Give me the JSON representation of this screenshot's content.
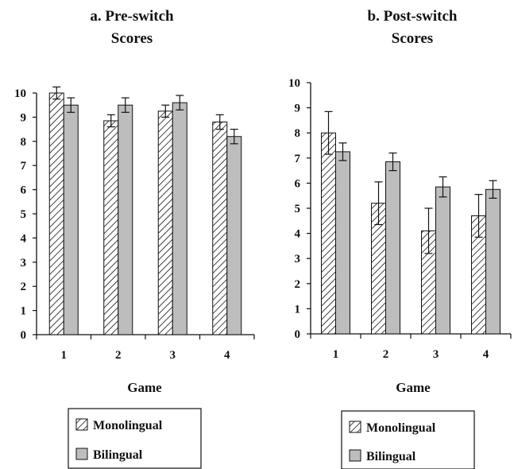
{
  "chart_data": [
    {
      "type": "bar",
      "title_lines": [
        "a. Pre-switch",
        "Scores"
      ],
      "xlabel": "Game",
      "ylabel": "",
      "ylim": [
        0,
        10
      ],
      "yticks": [
        0,
        1,
        2,
        3,
        4,
        5,
        6,
        7,
        8,
        9,
        10
      ],
      "categories": [
        "1",
        "2",
        "3",
        "4"
      ],
      "series": [
        {
          "name": "Monolingual",
          "fill": "hatch",
          "values": [
            10.0,
            8.85,
            9.25,
            8.8
          ],
          "error": [
            0.25,
            0.25,
            0.25,
            0.3
          ]
        },
        {
          "name": "Bilingual",
          "fill": "#bdbdbd",
          "values": [
            9.5,
            9.5,
            9.6,
            8.2
          ],
          "error": [
            0.3,
            0.3,
            0.3,
            0.3
          ]
        }
      ],
      "legend": "below"
    },
    {
      "type": "bar",
      "title_lines": [
        "b. Post-switch",
        "Scores"
      ],
      "xlabel": "Game",
      "ylabel": "",
      "ylim": [
        0,
        10
      ],
      "yticks": [
        0,
        1,
        2,
        3,
        4,
        5,
        6,
        7,
        8,
        9,
        10
      ],
      "categories": [
        "1",
        "2",
        "3",
        "4"
      ],
      "series": [
        {
          "name": "Monolingual",
          "fill": "hatch",
          "values": [
            8.0,
            5.2,
            4.1,
            4.7
          ],
          "error": [
            0.85,
            0.85,
            0.9,
            0.85
          ]
        },
        {
          "name": "Bilingual",
          "fill": "#bdbdbd",
          "values": [
            7.25,
            6.85,
            5.85,
            5.75
          ],
          "error": [
            0.35,
            0.35,
            0.4,
            0.35
          ]
        }
      ],
      "legend": "below"
    }
  ]
}
